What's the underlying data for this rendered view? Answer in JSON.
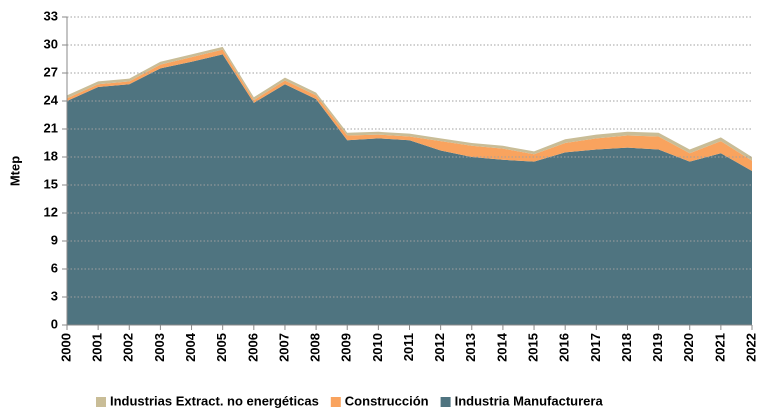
{
  "chart_data": {
    "type": "stacked_area",
    "y_label": "Mtep",
    "categories": [
      "2000",
      "2001",
      "2002",
      "2003",
      "2004",
      "2005",
      "2006",
      "2007",
      "2008",
      "2009",
      "2010",
      "2011",
      "2012",
      "2013",
      "2014",
      "2015",
      "2016",
      "2017",
      "2018",
      "2019",
      "2020",
      "2021",
      "2022"
    ],
    "series": [
      {
        "name": "Industria Manufacturera",
        "color": "#4f7480",
        "values": [
          24.0,
          25.5,
          25.8,
          27.5,
          28.2,
          29.0,
          23.8,
          25.8,
          24.2,
          19.8,
          20.0,
          19.8,
          18.7,
          18.0,
          17.7,
          17.5,
          18.5,
          18.8,
          19.0,
          18.8,
          17.5,
          18.4,
          16.5
        ]
      },
      {
        "name": "Construcción",
        "color": "#f9a35e",
        "values": [
          0.3,
          0.3,
          0.3,
          0.4,
          0.5,
          0.5,
          0.3,
          0.4,
          0.4,
          0.5,
          0.4,
          0.4,
          1.0,
          1.2,
          1.2,
          0.8,
          1.0,
          1.2,
          1.3,
          1.4,
          0.9,
          1.3,
          1.1
        ]
      },
      {
        "name": "Industrias Extract. no energéticas",
        "color": "#c9bd97",
        "values": [
          0.3,
          0.3,
          0.3,
          0.3,
          0.3,
          0.3,
          0.3,
          0.3,
          0.3,
          0.3,
          0.3,
          0.3,
          0.3,
          0.3,
          0.3,
          0.3,
          0.4,
          0.4,
          0.4,
          0.4,
          0.4,
          0.4,
          0.4
        ]
      }
    ],
    "ylim": [
      0,
      33
    ],
    "yticks": [
      0,
      3,
      6,
      9,
      12,
      15,
      18,
      21,
      24,
      27,
      30,
      33
    ],
    "grid": true
  }
}
